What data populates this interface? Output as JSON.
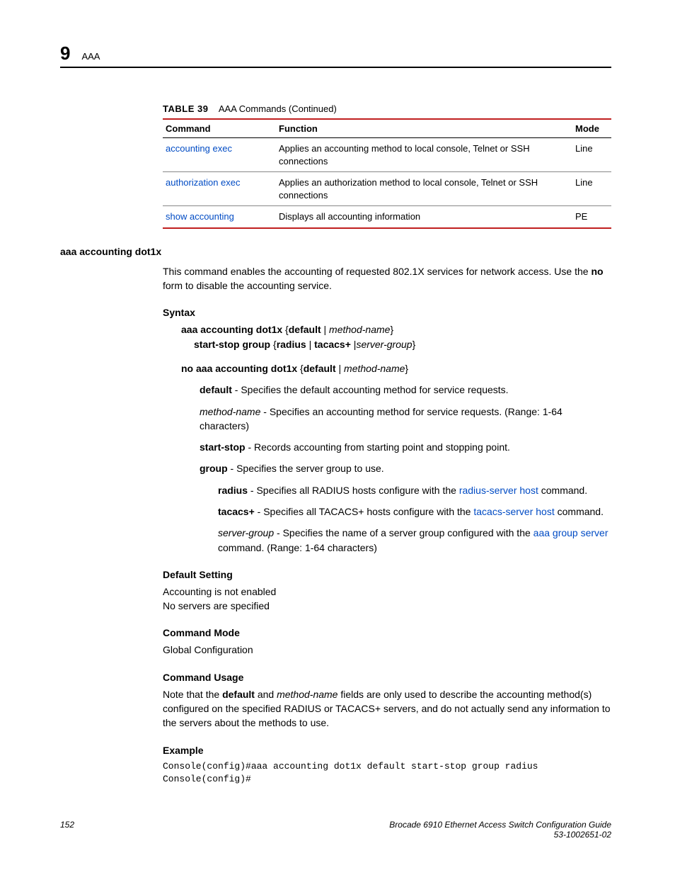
{
  "header": {
    "chapter_number": "9",
    "section": "AAA"
  },
  "table": {
    "caption_label": "TABLE 39",
    "caption_text": "AAA Commands (Continued)",
    "columns": [
      "Command",
      "Function",
      "Mode"
    ],
    "rows": [
      {
        "cmd": "accounting exec",
        "func": "Applies an accounting method to local console, Telnet or SSH connections",
        "mode": "Line"
      },
      {
        "cmd": "authorization exec",
        "func": "Applies an authorization method to local console, Telnet or SSH connections",
        "mode": "Line"
      },
      {
        "cmd": "show accounting",
        "func": "Displays all accounting information",
        "mode": "PE"
      }
    ]
  },
  "cmd_section": {
    "title": "aaa accounting dot1x",
    "intro_pre": "This command enables the accounting of requested 802.1X services for network access. Use the ",
    "intro_bold": "no",
    "intro_post": " form to disable the accounting service.",
    "syntax_heading": "Syntax",
    "syntax": {
      "line1_b1": "aaa accounting dot1x",
      "line1_t1": " {",
      "line1_b2": "default",
      "line1_t2": " | ",
      "line1_i1": "method-name",
      "line1_t3": "}",
      "line2_b1": "start-stop group",
      "line2_t1": " {",
      "line2_b2": "radius",
      "line2_t2": " | ",
      "line2_b3": "tacacs+",
      "line2_t3": " |",
      "line2_i1": "server-group",
      "line2_t4": "}",
      "line3_b1": "no aaa accounting dot1x",
      "line3_t1": " {",
      "line3_b2": "default",
      "line3_t2": " | ",
      "line3_i1": "method-name",
      "line3_t3": "}"
    },
    "params": {
      "default_b": "default",
      "default_t": " - Specifies the default accounting method for service requests.",
      "method_i": "method-name",
      "method_t": " - Specifies an accounting method for service requests. (Range: 1-64 characters)",
      "startstop_b": "start-stop",
      "startstop_t": " - Records accounting from starting point and stopping point.",
      "group_b": "group",
      "group_t": " - Specifies the server group to use.",
      "radius_b": "radius",
      "radius_t1": " - Specifies all RADIUS hosts configure with the ",
      "radius_link": "radius-server host",
      "radius_t2": " command.",
      "tacacs_b": "tacacs+",
      "tacacs_t1": " - Specifies all TACACS+ hosts configure with the ",
      "tacacs_link": "tacacs-server host",
      "tacacs_t2": " command.",
      "sg_i": "server-group",
      "sg_t1": " - Specifies the name of a server group configured with the ",
      "sg_link": "aaa group server",
      "sg_t2": " command. (Range: 1-64 characters)"
    },
    "default_heading": "Default Setting",
    "default_line1": "Accounting is not enabled",
    "default_line2": "No servers are specified",
    "mode_heading": "Command Mode",
    "mode_text": "Global Configuration",
    "usage_heading": "Command Usage",
    "usage_pre": "Note that the ",
    "usage_b1": "default",
    "usage_mid1": " and ",
    "usage_i1": "method-name",
    "usage_post": " fields are only used to describe the accounting method(s) configured on the specified RADIUS or TACACS+ servers, and do not actually send any information to the servers about the methods to use.",
    "example_heading": "Example",
    "example_code": "Console(config)#aaa accounting dot1x default start-stop group radius\nConsole(config)#"
  },
  "footer": {
    "page": "152",
    "title": "Brocade 6910 Ethernet Access Switch Configuration Guide",
    "docnum": "53-1002651-02"
  },
  "colors": {
    "rule_red": "#c02020",
    "link_blue": "#004bc4"
  }
}
